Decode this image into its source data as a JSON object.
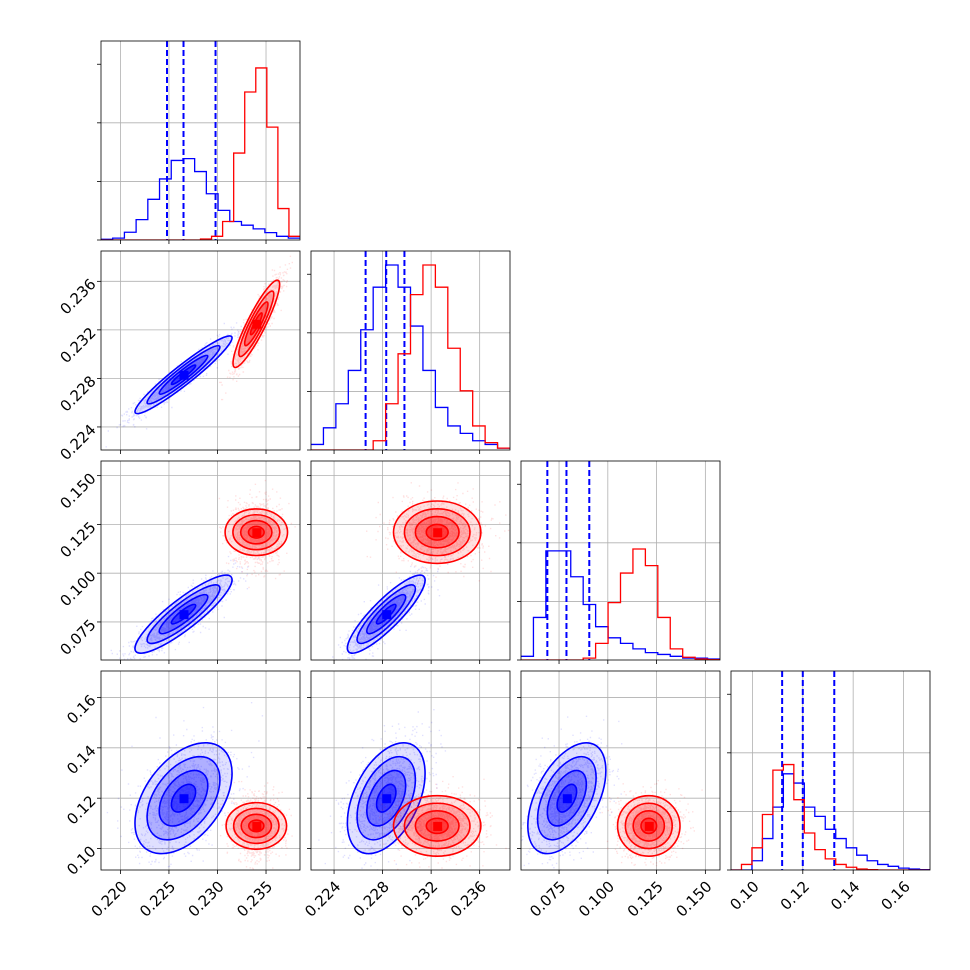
{
  "chart_data": {
    "type": "corner",
    "colors": {
      "blue": "#0000ff",
      "red": "#ff0000"
    },
    "grid": true,
    "parameters": [
      {
        "ticks": [
          0.22,
          0.225,
          0.23,
          0.235
        ],
        "tick_labels": [
          "0.220",
          "0.225",
          "0.230",
          "0.235"
        ],
        "range": [
          0.218,
          0.2385
        ]
      },
      {
        "ticks": [
          0.224,
          0.228,
          0.232,
          0.236
        ],
        "tick_labels": [
          "0.224",
          "0.228",
          "0.232",
          "0.236"
        ],
        "range": [
          0.2221,
          0.2385
        ]
      },
      {
        "ticks": [
          0.075,
          0.1,
          0.125,
          0.15
        ],
        "tick_labels": [
          "0.075",
          "0.100",
          "0.125",
          "0.150"
        ],
        "range": [
          0.0555,
          0.1575
        ]
      },
      {
        "ticks": [
          0.1,
          0.12,
          0.14,
          0.16
        ],
        "tick_labels": [
          "0.10",
          "0.12",
          "0.14",
          "0.16"
        ],
        "range": [
          0.0915,
          0.1705
        ]
      }
    ],
    "series": [
      {
        "color": "blue",
        "means": [
          0.2265,
          0.2283,
          0.079,
          0.12
        ],
        "sds": [
          0.0025,
          0.0016,
          0.01,
          0.011
        ],
        "corr": [
          [
            1,
            0.95,
            0.88,
            0.45
          ],
          [
            0.95,
            1,
            0.87,
            0.45
          ],
          [
            0.88,
            0.87,
            1,
            0.5
          ],
          [
            0.45,
            0.45,
            0.5,
            1
          ]
        ],
        "quantiles": [
          [
            0.2248,
            0.2265,
            0.2298
          ],
          [
            0.2266,
            0.2283,
            0.2298
          ],
          [
            0.069,
            0.0788,
            0.0905
          ],
          [
            0.1118,
            0.12,
            0.1325
          ]
        ],
        "hist": [
          [
            0.004,
            0.01,
            0.042,
            0.11,
            0.22,
            0.33,
            0.43,
            0.44,
            0.37,
            0.25,
            0.16,
            0.1,
            0.08,
            0.06,
            0.04,
            0.02,
            0.01
          ],
          [
            0.03,
            0.12,
            0.25,
            0.43,
            0.65,
            0.88,
            1.0,
            0.88,
            0.67,
            0.43,
            0.23,
            0.13,
            0.09,
            0.05,
            0.03,
            0.01
          ],
          [
            0.02,
            0.23,
            0.59,
            0.59,
            0.45,
            0.3,
            0.18,
            0.12,
            0.09,
            0.06,
            0.04,
            0.03,
            0.02,
            0.01,
            0.01,
            0.005
          ],
          [
            0.0,
            0.0,
            0.05,
            0.17,
            0.34,
            0.52,
            0.47,
            0.34,
            0.29,
            0.22,
            0.17,
            0.12,
            0.08,
            0.05,
            0.03,
            0.02,
            0.01,
            0.005,
            0.002
          ]
        ]
      },
      {
        "color": "red",
        "means": [
          0.234,
          0.2325,
          0.121,
          0.109
        ],
        "sds": [
          0.0012,
          0.0018,
          0.008,
          0.006
        ],
        "corr": [
          [
            1,
            0.9,
            0.0,
            0.0
          ],
          [
            0.9,
            1,
            0.0,
            0.0
          ],
          [
            0,
            0,
            1,
            0.0
          ],
          [
            0,
            0,
            0.0,
            1
          ]
        ],
        "hist": [
          [
            0,
            0,
            0,
            0,
            0,
            0,
            0,
            0,
            0,
            0.005,
            0.02,
            0.1,
            0.47,
            0.8,
            0.93,
            0.61,
            0.17,
            0.02
          ],
          [
            0.0,
            0.0,
            0.0,
            0.0,
            0.0,
            0.05,
            0.25,
            0.52,
            0.84,
            1.0,
            0.88,
            0.55,
            0.32,
            0.13,
            0.04,
            0.01
          ],
          [
            0,
            0,
            0,
            0,
            0,
            0.01,
            0.09,
            0.31,
            0.47,
            0.6,
            0.51,
            0.23,
            0.06,
            0.015,
            0.005,
            0.002
          ],
          [
            0.0,
            0.03,
            0.12,
            0.3,
            0.54,
            0.57,
            0.38,
            0.2,
            0.11,
            0.06,
            0.03,
            0.015,
            0.005,
            0.002,
            0.0,
            0.0,
            0.0,
            0.0,
            0.0
          ]
        ]
      }
    ]
  }
}
